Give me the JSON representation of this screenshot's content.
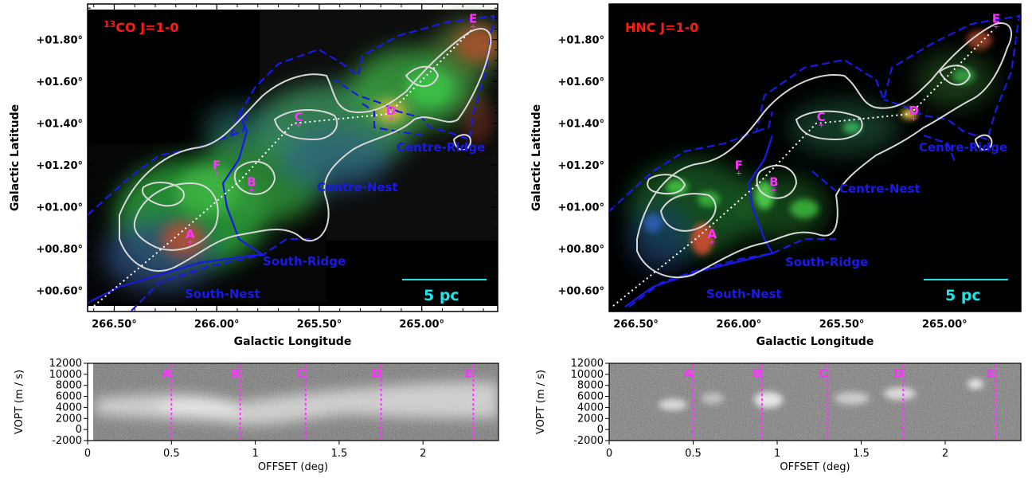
{
  "figure": {
    "panels": [
      {
        "id": "co",
        "molecule_label": {
          "sup": "13",
          "rest": "CO J=1-0"
        },
        "scale_bar_label": "5 pc",
        "region_labels": [
          "South-Nest",
          "South-Ridge",
          "Centre-Nest",
          "Centre-Ridge"
        ],
        "point_labels": [
          "A",
          "B",
          "C",
          "D",
          "E",
          "F"
        ]
      },
      {
        "id": "hnc",
        "molecule_label": {
          "sup": "",
          "rest": "HNC J=1-0"
        },
        "scale_bar_label": "5 pc",
        "region_labels": [
          "South-Nest",
          "South-Ridge",
          "Centre-Nest",
          "Centre-Ridge"
        ],
        "point_labels": [
          "A",
          "B",
          "C",
          "D",
          "E",
          "F"
        ]
      }
    ],
    "colors": {
      "region_outline": "#1a1ae6",
      "contour": "#d8d8d8",
      "molecule_label": "#ff1a1a",
      "point_label": "#ff33ff",
      "scale_bar": "#1ae6e6"
    }
  },
  "chart_data": [
    {
      "type": "heatmap",
      "name_label": "13CO J=1-0 RGB map",
      "xlabel": "Galactic Longitude",
      "ylabel": "Galactic Latitude",
      "xticks": [
        "266.50°",
        "266.00°",
        "265.50°",
        "265.00°"
      ],
      "xtick_values": [
        266.5,
        266.0,
        265.5,
        265.0
      ],
      "yticks": [
        "+00.60°",
        "+00.80°",
        "+01.00°",
        "+01.20°",
        "+01.40°",
        "+01.60°",
        "+01.80°"
      ],
      "ytick_values": [
        0.6,
        0.8,
        1.0,
        1.2,
        1.4,
        1.6,
        1.8
      ],
      "xlim": [
        266.63,
        264.63
      ],
      "ylim": [
        0.5,
        1.97
      ],
      "points": [
        {
          "label": "A",
          "l": 266.13,
          "b": 0.85
        },
        {
          "label": "B",
          "l": 265.83,
          "b": 1.1
        },
        {
          "label": "C",
          "l": 265.6,
          "b": 1.41
        },
        {
          "label": "D",
          "l": 265.15,
          "b": 1.44
        },
        {
          "label": "E",
          "l": 264.75,
          "b": 1.88
        },
        {
          "label": "F",
          "l": 266.0,
          "b": 1.18
        }
      ]
    },
    {
      "type": "heatmap",
      "name_label": "HNC J=1-0 RGB map",
      "xlabel": "Galactic Longitude",
      "ylabel": "Galactic Latitude",
      "xticks": [
        "266.50°",
        "266.00°",
        "265.50°",
        "265.00°"
      ],
      "xtick_values": [
        266.5,
        266.0,
        265.5,
        265.0
      ],
      "yticks": [
        "+00.60°",
        "+00.80°",
        "+01.00°",
        "+01.20°",
        "+01.40°",
        "+01.60°",
        "+01.80°"
      ],
      "ytick_values": [
        0.6,
        0.8,
        1.0,
        1.2,
        1.4,
        1.6,
        1.8
      ],
      "xlim": [
        266.63,
        264.63
      ],
      "ylim": [
        0.5,
        1.97
      ],
      "points": [
        {
          "label": "A",
          "l": 266.13,
          "b": 0.85
        },
        {
          "label": "B",
          "l": 265.83,
          "b": 1.1
        },
        {
          "label": "C",
          "l": 265.6,
          "b": 1.41
        },
        {
          "label": "D",
          "l": 265.15,
          "b": 1.44
        },
        {
          "label": "E",
          "l": 264.75,
          "b": 1.88
        },
        {
          "label": "F",
          "l": 266.0,
          "b": 1.18
        }
      ]
    },
    {
      "type": "heatmap",
      "name_label": "13CO position-velocity diagram",
      "xlabel": "OFFSET (deg)",
      "ylabel": "VOPT (m / s)",
      "xticks": [
        "0",
        "0.5",
        "1",
        "1.5",
        "2"
      ],
      "xtick_values": [
        0,
        0.5,
        1,
        1.5,
        2
      ],
      "yticks": [
        "12000",
        "10000",
        "8000",
        "6000",
        "4000",
        "2000",
        "0",
        "-2000"
      ],
      "ytick_values": [
        12000,
        10000,
        8000,
        6000,
        4000,
        2000,
        0,
        -2000
      ],
      "xlim": [
        0,
        2.45
      ],
      "ylim": [
        -2000,
        12000
      ],
      "cuts": [
        {
          "label": "A",
          "offset": 0.5
        },
        {
          "label": "B",
          "offset": 0.91
        },
        {
          "label": "C",
          "offset": 1.3
        },
        {
          "label": "D",
          "offset": 1.75
        },
        {
          "label": "E",
          "offset": 2.3
        }
      ]
    },
    {
      "type": "heatmap",
      "name_label": "HNC position-velocity diagram",
      "xlabel": "OFFSET (deg)",
      "ylabel": "VOPT (m / s)",
      "xticks": [
        "0",
        "0.5",
        "1",
        "1.5",
        "2"
      ],
      "xtick_values": [
        0,
        0.5,
        1,
        1.5,
        2
      ],
      "yticks": [
        "12000",
        "10000",
        "8000",
        "6000",
        "4000",
        "2000",
        "0",
        "-2000"
      ],
      "ytick_values": [
        12000,
        10000,
        8000,
        6000,
        4000,
        2000,
        0,
        -2000
      ],
      "xlim": [
        0,
        2.45
      ],
      "ylim": [
        -2000,
        12000
      ],
      "cuts": [
        {
          "label": "A",
          "offset": 0.5
        },
        {
          "label": "B",
          "offset": 0.91
        },
        {
          "label": "C",
          "offset": 1.3
        },
        {
          "label": "D",
          "offset": 1.75
        },
        {
          "label": "E",
          "offset": 2.3
        }
      ]
    }
  ]
}
